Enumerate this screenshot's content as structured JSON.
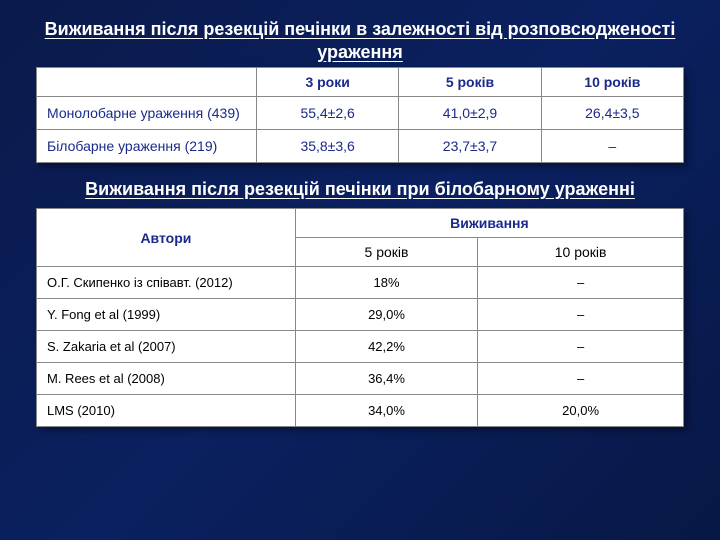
{
  "title1": "Виживання після резекцій печінки в залежності від розповсюдженості ураження",
  "table1": {
    "columns": [
      "",
      "3 роки",
      "5 років",
      "10 років"
    ],
    "rows": [
      {
        "label": "Монолобарне ураження (439)",
        "c1": "55,4±2,6",
        "c2": "41,0±2,9",
        "c3": "26,4±3,5"
      },
      {
        "label": "Білобарне ураження (219)",
        "c1": "35,8±3,6",
        "c2": "23,7±3,7",
        "c3": "–"
      }
    ]
  },
  "title2": "Виживання після резекцій печінки при білобарному ураженні",
  "table2": {
    "head_author": "Автори",
    "head_surv": "Виживання",
    "head_5y": "5 років",
    "head_10y": "10 років",
    "rows": [
      {
        "author": "О.Г. Скипенко із співавт. (2012)",
        "y5": "18%",
        "y10": "–"
      },
      {
        "author": "Y. Fong et al (1999)",
        "y5": "29,0%",
        "y10": "–"
      },
      {
        "author": "S. Zakaria et al (2007)",
        "y5": "42,2%",
        "y10": "–"
      },
      {
        "author": "M. Rees et al (2008)",
        "y5": "36,4%",
        "y10": "–"
      },
      {
        "author": "LMS (2010)",
        "y5": "34,0%",
        "y10": "20,0%"
      }
    ]
  },
  "colors": {
    "bg_from": "#0a1a4a",
    "bg_to": "#081845",
    "heading_text": "#ffffff",
    "cell_text_blue": "#1a2a8a",
    "cell_text_black": "#000000",
    "border": "#888888",
    "table_bg": "#ffffff"
  },
  "fonts": {
    "title_size_pt": 18,
    "cell_size_pt": 14,
    "t2_cell_size_pt": 13,
    "family": "Arial"
  }
}
